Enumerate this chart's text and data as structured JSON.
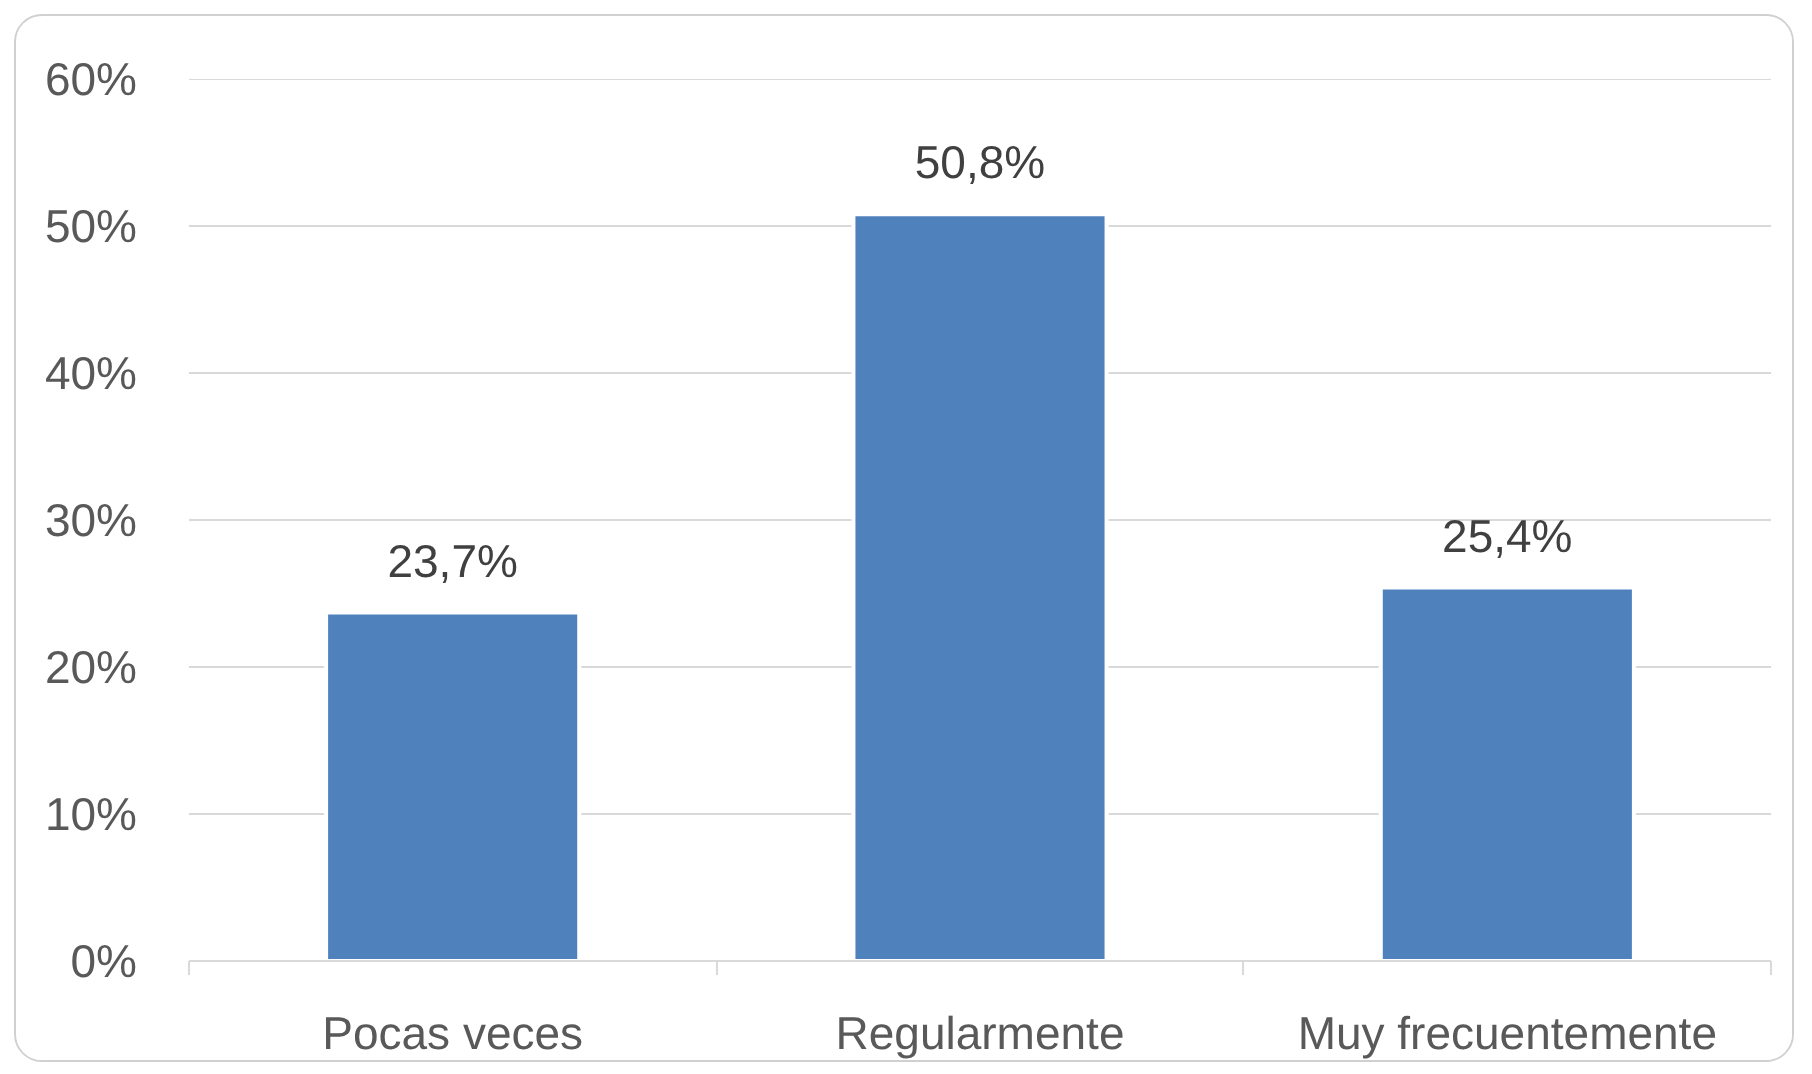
{
  "chart_data": {
    "type": "bar",
    "categories": [
      "Pocas veces",
      "Regularmente",
      "Muy frecuentemente"
    ],
    "values": [
      23.7,
      50.8,
      25.4
    ],
    "color": "#4f81bd",
    "value_labels": [
      "23,7%",
      "50,8%",
      "25,4%"
    ],
    "ylim": [
      0,
      60
    ],
    "yticks": [
      {
        "value": 0,
        "label": "0%"
      },
      {
        "value": 10,
        "label": "10%"
      },
      {
        "value": 20,
        "label": "20%"
      },
      {
        "value": 30,
        "label": "30%"
      },
      {
        "value": 40,
        "label": "40%"
      },
      {
        "value": 50,
        "label": "50%"
      },
      {
        "value": 60,
        "label": "60%"
      }
    ],
    "grid": "y"
  }
}
